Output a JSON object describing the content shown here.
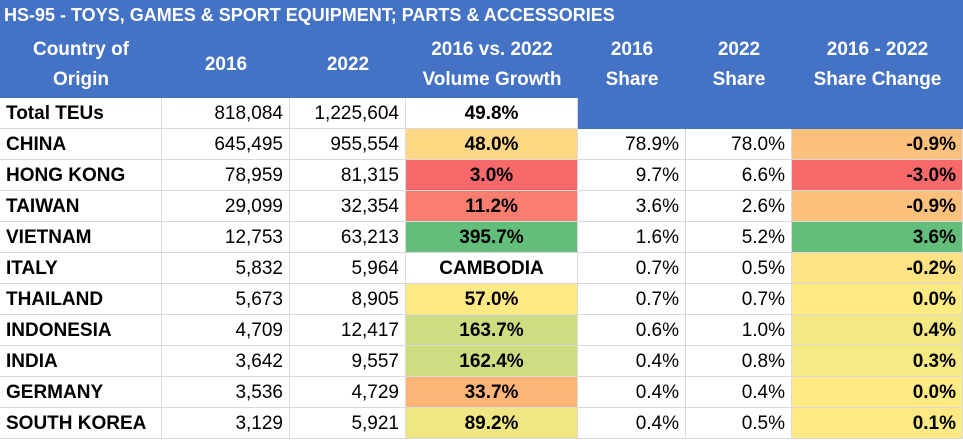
{
  "title": "HS-95 - TOYS, GAMES & SPORT EQUIPMENT; PARTS & ACCESSORIES",
  "headers": {
    "origin": [
      "Country of",
      "Origin"
    ],
    "y2016": "2016",
    "y2022": "2022",
    "growth": [
      "2016  vs. 2022",
      "Volume Growth"
    ],
    "share2016": [
      "2016",
      "Share"
    ],
    "share2022": [
      "2022",
      "Share"
    ],
    "share_change": [
      "2016 - 2022",
      "Share Change"
    ]
  },
  "colors": {
    "header": "#4472C4",
    "green": "#63BE7B",
    "red": "#F8696B",
    "yellow": "#FFEB84",
    "orange": "#F8A070"
  },
  "chart_data": {
    "type": "table",
    "title": "HS-95 - TOYS, GAMES & SPORT EQUIPMENT; PARTS & ACCESSORIES",
    "columns": [
      "Country of Origin",
      "2016",
      "2022",
      "2016  vs. 2022 Volume Growth",
      "2016 Share",
      "2022 Share",
      "2016 - 2022 Share Change"
    ],
    "rows": [
      {
        "country": "Total TEUs",
        "v2016": "818,084",
        "v2022": "1,225,604",
        "growth": "49.8%",
        "share2016": "",
        "share2022": "",
        "change": "",
        "growth_color": "#FFFFFF",
        "change_color": "#FFFFFF"
      },
      {
        "country": "CHINA",
        "v2016": "645,495",
        "v2022": "955,554",
        "growth": "48.0%",
        "share2016": "78.9%",
        "share2022": "78.0%",
        "change": "-0.9%",
        "growth_color": "#FFD884",
        "change_color": "#FDC17D"
      },
      {
        "country": "HONG KONG",
        "v2016": "78,959",
        "v2022": "81,315",
        "growth": "3.0%",
        "share2016": "9.7%",
        "share2022": "6.6%",
        "change": "-3.0%",
        "growth_color": "#F8696B",
        "change_color": "#F8696B"
      },
      {
        "country": "TAIWAN",
        "v2016": "29,099",
        "v2022": "32,354",
        "growth": "11.2%",
        "share2016": "3.6%",
        "share2022": "2.6%",
        "change": "-0.9%",
        "growth_color": "#F97E6F",
        "change_color": "#FDC17D"
      },
      {
        "country": "VIETNAM",
        "v2016": "12,753",
        "v2022": "63,213",
        "growth": "395.7%",
        "share2016": "1.6%",
        "share2022": "5.2%",
        "change": "3.6%",
        "growth_color": "#63BE7B",
        "change_color": "#63BE7B"
      },
      {
        "country": "ITALY",
        "v2016": "5,832",
        "v2022": "5,964",
        "growth": "CAMBODIA",
        "share2016": "0.7%",
        "share2022": "0.5%",
        "change": "-0.2%",
        "growth_color": "#FFFFFF",
        "change_color": "#FFE283"
      },
      {
        "country": "THAILAND",
        "v2016": "5,673",
        "v2022": "8,905",
        "growth": "57.0%",
        "share2016": "0.7%",
        "share2022": "0.7%",
        "change": "0.0%",
        "growth_color": "#FFE985",
        "change_color": "#FFEB84"
      },
      {
        "country": "INDONESIA",
        "v2016": "4,709",
        "v2022": "12,417",
        "growth": "163.7%",
        "share2016": "0.6%",
        "share2022": "1.0%",
        "change": "0.4%",
        "growth_color": "#CCDD82",
        "change_color": "#F4E884"
      },
      {
        "country": "INDIA",
        "v2016": "3,642",
        "v2022": "9,557",
        "growth": "162.4%",
        "share2016": "0.4%",
        "share2022": "0.8%",
        "change": "0.3%",
        "growth_color": "#CCDD82",
        "change_color": "#F7E984"
      },
      {
        "country": "GERMANY",
        "v2016": "3,536",
        "v2022": "4,729",
        "growth": "33.7%",
        "share2016": "0.4%",
        "share2022": "0.4%",
        "change": "0.0%",
        "growth_color": "#FCB479",
        "change_color": "#FFEB84"
      },
      {
        "country": "SOUTH KOREA",
        "v2016": "3,129",
        "v2022": "5,921",
        "growth": "89.2%",
        "share2016": "0.4%",
        "share2022": "0.5%",
        "change": "0.1%",
        "growth_color": "#F0E784",
        "change_color": "#FDEA84"
      }
    ]
  }
}
